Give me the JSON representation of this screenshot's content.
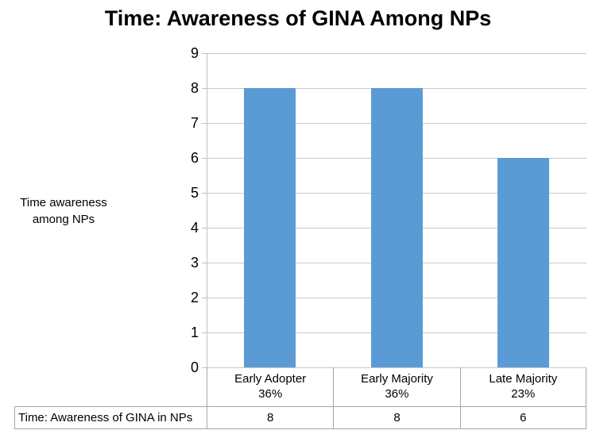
{
  "chart_data": {
    "type": "bar",
    "title": "Time: Awareness of GINA Among NPs",
    "ylabel": "Time awareness\namong NPs",
    "xlabel": "",
    "categories": [
      "Early Adopter",
      "Early Majority",
      "Late Majority"
    ],
    "category_sublabels": [
      "36%",
      "36%",
      "23%"
    ],
    "series": [
      {
        "name": "Time: Awareness of GINA in NPs",
        "values": [
          8,
          8,
          6
        ]
      }
    ],
    "ylim": [
      0,
      9
    ],
    "yticks": [
      0,
      1,
      2,
      3,
      4,
      5,
      6,
      7,
      8,
      9
    ],
    "grid": true,
    "legend_position": "none",
    "data_table_shown": true,
    "colors": {
      "bar_fill": "#5B9BD5",
      "gridline": "#C9C9C9",
      "axis_line": "#BFBFBF",
      "table_border": "#A6A6A6",
      "text": "#000000",
      "background": "#FFFFFF"
    }
  }
}
